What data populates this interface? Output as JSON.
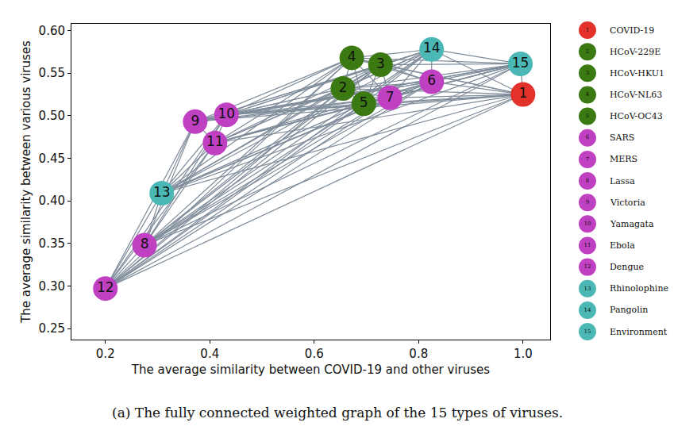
{
  "chart_data": {
    "type": "network",
    "caption": "(a) The fully connected weighted graph of the 15 types of viruses.",
    "x_label": "The average similarity between COVID-19 and other viruses",
    "y_label": "The average similarity between various viruses",
    "xlim": [
      0.135,
      1.052
    ],
    "ylim": [
      0.237,
      0.608
    ],
    "xticks": [
      {
        "value": 0.2,
        "label": "0.2"
      },
      {
        "value": 0.4,
        "label": "0.4"
      },
      {
        "value": 0.6,
        "label": "0.6"
      },
      {
        "value": 0.8,
        "label": "0.8"
      },
      {
        "value": 1.0,
        "label": "1.0"
      }
    ],
    "yticks": [
      0.25,
      {
        "value": 0.3,
        "label": "0.30"
      },
      0.35,
      {
        "value": 0.4,
        "label": "0.40"
      },
      0.45,
      {
        "value": 0.5,
        "label": "0.50"
      },
      0.55,
      {
        "value": 0.6,
        "label": "0.60"
      }
    ],
    "grid": false,
    "points": [
      {
        "label": "1",
        "name": "COVID-19",
        "color": "#e3312b",
        "x": 1.0,
        "y": 0.525
      },
      {
        "label": "2",
        "name": "HCoV-229E",
        "color": "#3b7a12",
        "x": 0.655,
        "y": 0.532
      },
      {
        "label": "3",
        "name": "HCoV-HKU1",
        "color": "#3b7a12",
        "x": 0.727,
        "y": 0.56
      },
      {
        "label": "4",
        "name": "HCoV-NL63",
        "color": "#3b7a12",
        "x": 0.672,
        "y": 0.568
      },
      {
        "label": "5",
        "name": "HCoV-OC43",
        "color": "#3b7a12",
        "x": 0.695,
        "y": 0.514
      },
      {
        "label": "6",
        "name": "SARS",
        "color": "#c040c2",
        "x": 0.825,
        "y": 0.54
      },
      {
        "label": "7",
        "name": "MERS",
        "color": "#c040c2",
        "x": 0.745,
        "y": 0.521
      },
      {
        "label": "8",
        "name": "Lassa",
        "color": "#c040c2",
        "x": 0.275,
        "y": 0.348
      },
      {
        "label": "9",
        "name": "Victoria",
        "color": "#c040c2",
        "x": 0.372,
        "y": 0.493
      },
      {
        "label": "10",
        "name": "Yamagata",
        "color": "#c040c2",
        "x": 0.432,
        "y": 0.501
      },
      {
        "label": "11",
        "name": "Ebola",
        "color": "#c040c2",
        "x": 0.41,
        "y": 0.468
      },
      {
        "label": "12",
        "name": "Dengue",
        "color": "#c040c2",
        "x": 0.2,
        "y": 0.297
      },
      {
        "label": "13",
        "name": "Rhinolophine",
        "color": "#4bb8b6",
        "x": 0.308,
        "y": 0.409
      },
      {
        "label": "14",
        "name": "Pangolin",
        "color": "#4bb8b6",
        "x": 0.825,
        "y": 0.578
      },
      {
        "label": "15",
        "name": "Environment",
        "color": "#4bb8b6",
        "x": 0.995,
        "y": 0.561
      }
    ]
  }
}
